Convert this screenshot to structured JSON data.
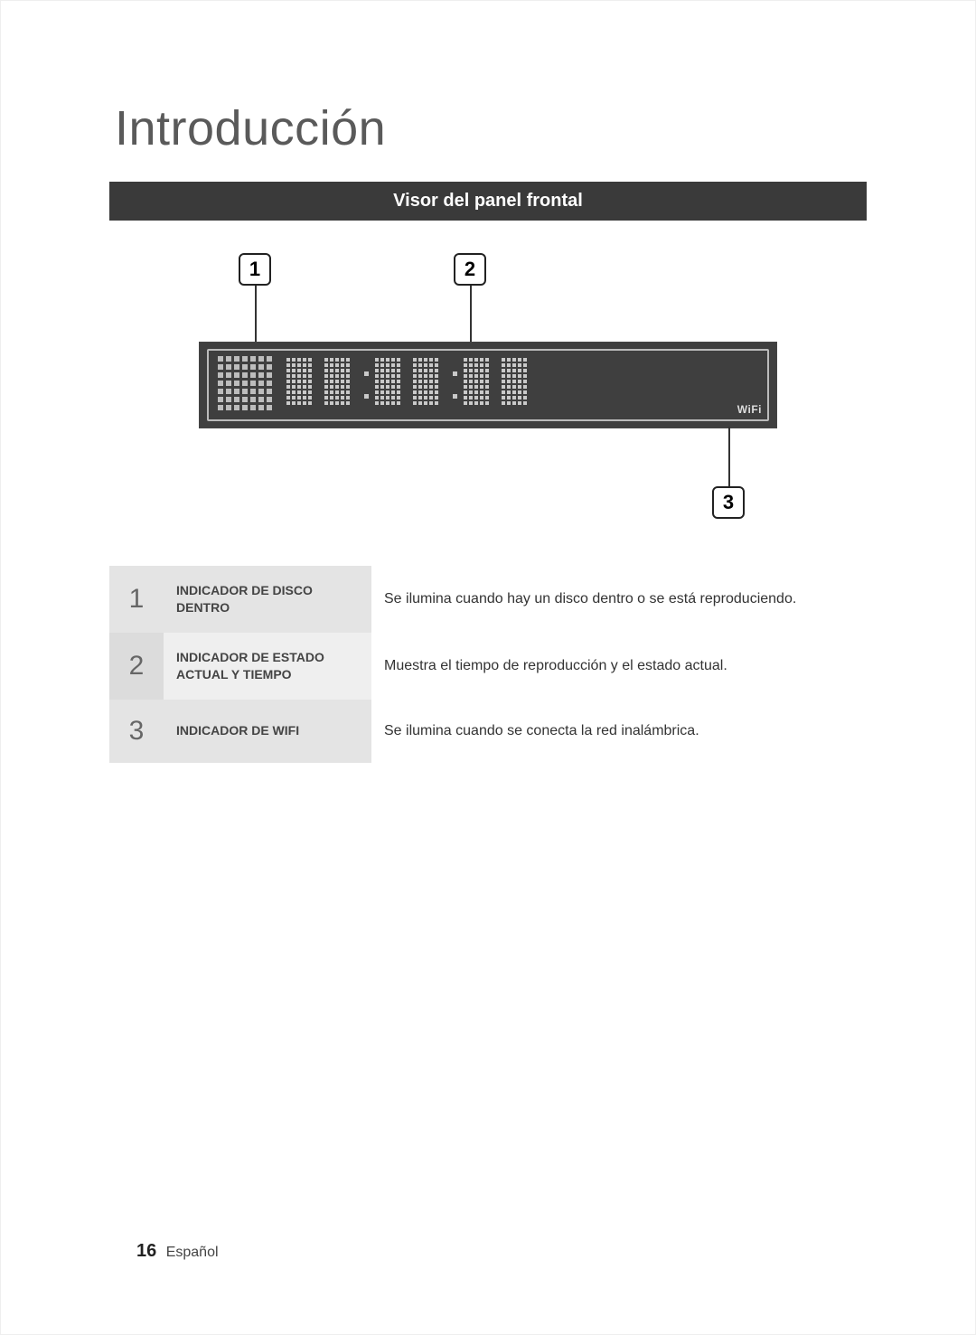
{
  "page": {
    "section_title": "Introducción",
    "banner": "Visor del panel frontal",
    "page_number": "16",
    "language": "Español"
  },
  "diagram": {
    "callouts": {
      "c1": "1",
      "c2": "2",
      "c3": "3"
    },
    "wifi_label": "WiFi",
    "panel_bg": "#3f3f3f",
    "panel_border": "#bbbbbb",
    "segment_color": "#c9c9c9",
    "dot_color": "#bdbdbd",
    "callout_border": "#222222"
  },
  "legend": [
    {
      "n": "1",
      "label": "INDICADOR DE DISCO DENTRO",
      "desc": "Se ilumina cuando hay un disco dentro o se está reproduciendo."
    },
    {
      "n": "2",
      "label": "INDICADOR DE ESTADO ACTUAL Y TIEMPO",
      "desc": "Muestra el tiempo de reproducción y el estado actual."
    },
    {
      "n": "3",
      "label": "INDICADOR DE WIFI",
      "desc": "Se ilumina cuando se conecta la red inalámbrica."
    }
  ],
  "colors": {
    "banner_bg": "#3a3a3a",
    "banner_fg": "#ffffff",
    "title_fg": "#5a5a5a",
    "row_num_bg_dark": "#d2d2d2",
    "row_num_bg_light": "#dcdcdc",
    "row_label_bg_dark": "#e4e4e4",
    "row_label_bg_light": "#efefef"
  }
}
